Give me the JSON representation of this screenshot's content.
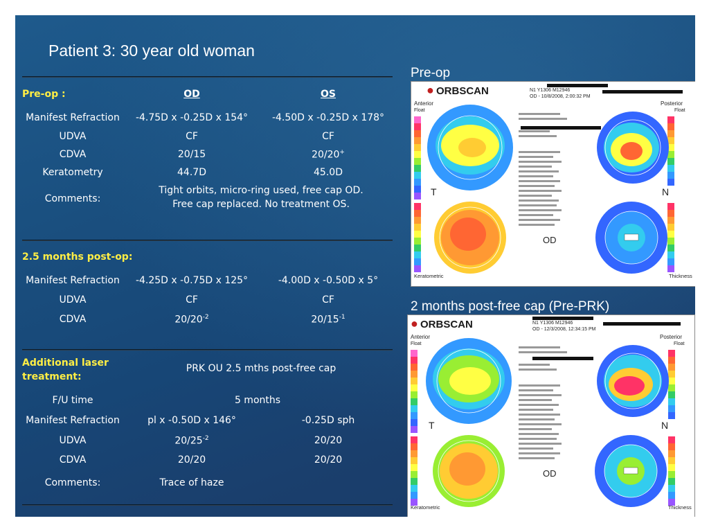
{
  "title": "Patient 3:  30 year old woman",
  "preop": {
    "heading": "Pre-op :",
    "col_od": "OD",
    "col_os": "OS",
    "rows": [
      {
        "label": "Manifest Refraction",
        "od": "-4.75D x -0.25D x 154°",
        "os": "-4.50D x -0.25D x 178°"
      },
      {
        "label": "UDVA",
        "od": "CF",
        "os": "CF"
      },
      {
        "label": "CDVA",
        "od": "20/15",
        "os": "20/20",
        "os_sup": "+"
      },
      {
        "label": "Keratometry",
        "od": "44.7D",
        "os": "45.0D"
      }
    ],
    "comments_label": "Comments:",
    "comments_line1": "Tight orbits, micro-ring used, free cap OD.",
    "comments_line2": "Free cap replaced.  No  treatment OS."
  },
  "postop": {
    "heading": "2.5 months post-op:",
    "rows": [
      {
        "label": "Manifest Refraction",
        "od": "-4.25D x -0.75D x 125°",
        "os": "-4.00D x -0.50D x 5°"
      },
      {
        "label": "UDVA",
        "od": "CF",
        "os": "CF"
      },
      {
        "label": "CDVA",
        "od": "20/20",
        "od_sup": "-2",
        "os": "20/15",
        "os_sup": "-1"
      }
    ]
  },
  "additional": {
    "heading_line1": "Additional laser",
    "heading_line2": "treatment:",
    "treatment": "PRK OU 2.5 mths post-free cap",
    "fu_label": "F/U time",
    "fu_value": "5 months",
    "rows": [
      {
        "label": "Manifest Refraction",
        "od": "pl x -0.50D x 146°",
        "os": "-0.25D sph"
      },
      {
        "label": "UDVA",
        "od": "20/25",
        "od_sup": "-2",
        "os": "20/20"
      },
      {
        "label": "CDVA",
        "od": "20/20",
        "os": "20/20"
      }
    ],
    "comments_label": "Comments:",
    "comments": "Trace of haze"
  },
  "images": [
    {
      "caption": "Pre-op",
      "brand": "ORBSCAN",
      "id_line": "N1 Y1306 M12946",
      "date_line": "OD - 10/8/2008, 2:00:32 PM",
      "labels": {
        "anterior": "Anterior",
        "float": "Float",
        "posterior": "Posterior",
        "keratometric": "Keratometric",
        "thickness": "Thickness",
        "t": "T",
        "n": "N",
        "od": "OD"
      }
    },
    {
      "caption": "2 months post-free cap (Pre-PRK)",
      "brand": "ORBSCAN",
      "id_line": "N1 Y1306 M12946",
      "date_line": "OD - 12/3/2008, 12:34:15 PM",
      "labels": {
        "anterior": "Anterior",
        "float": "Float",
        "posterior": "Posterior",
        "keratometric": "Keratometric",
        "thickness": "Thickness",
        "t": "T",
        "n": "N",
        "od": "OD"
      }
    }
  ]
}
